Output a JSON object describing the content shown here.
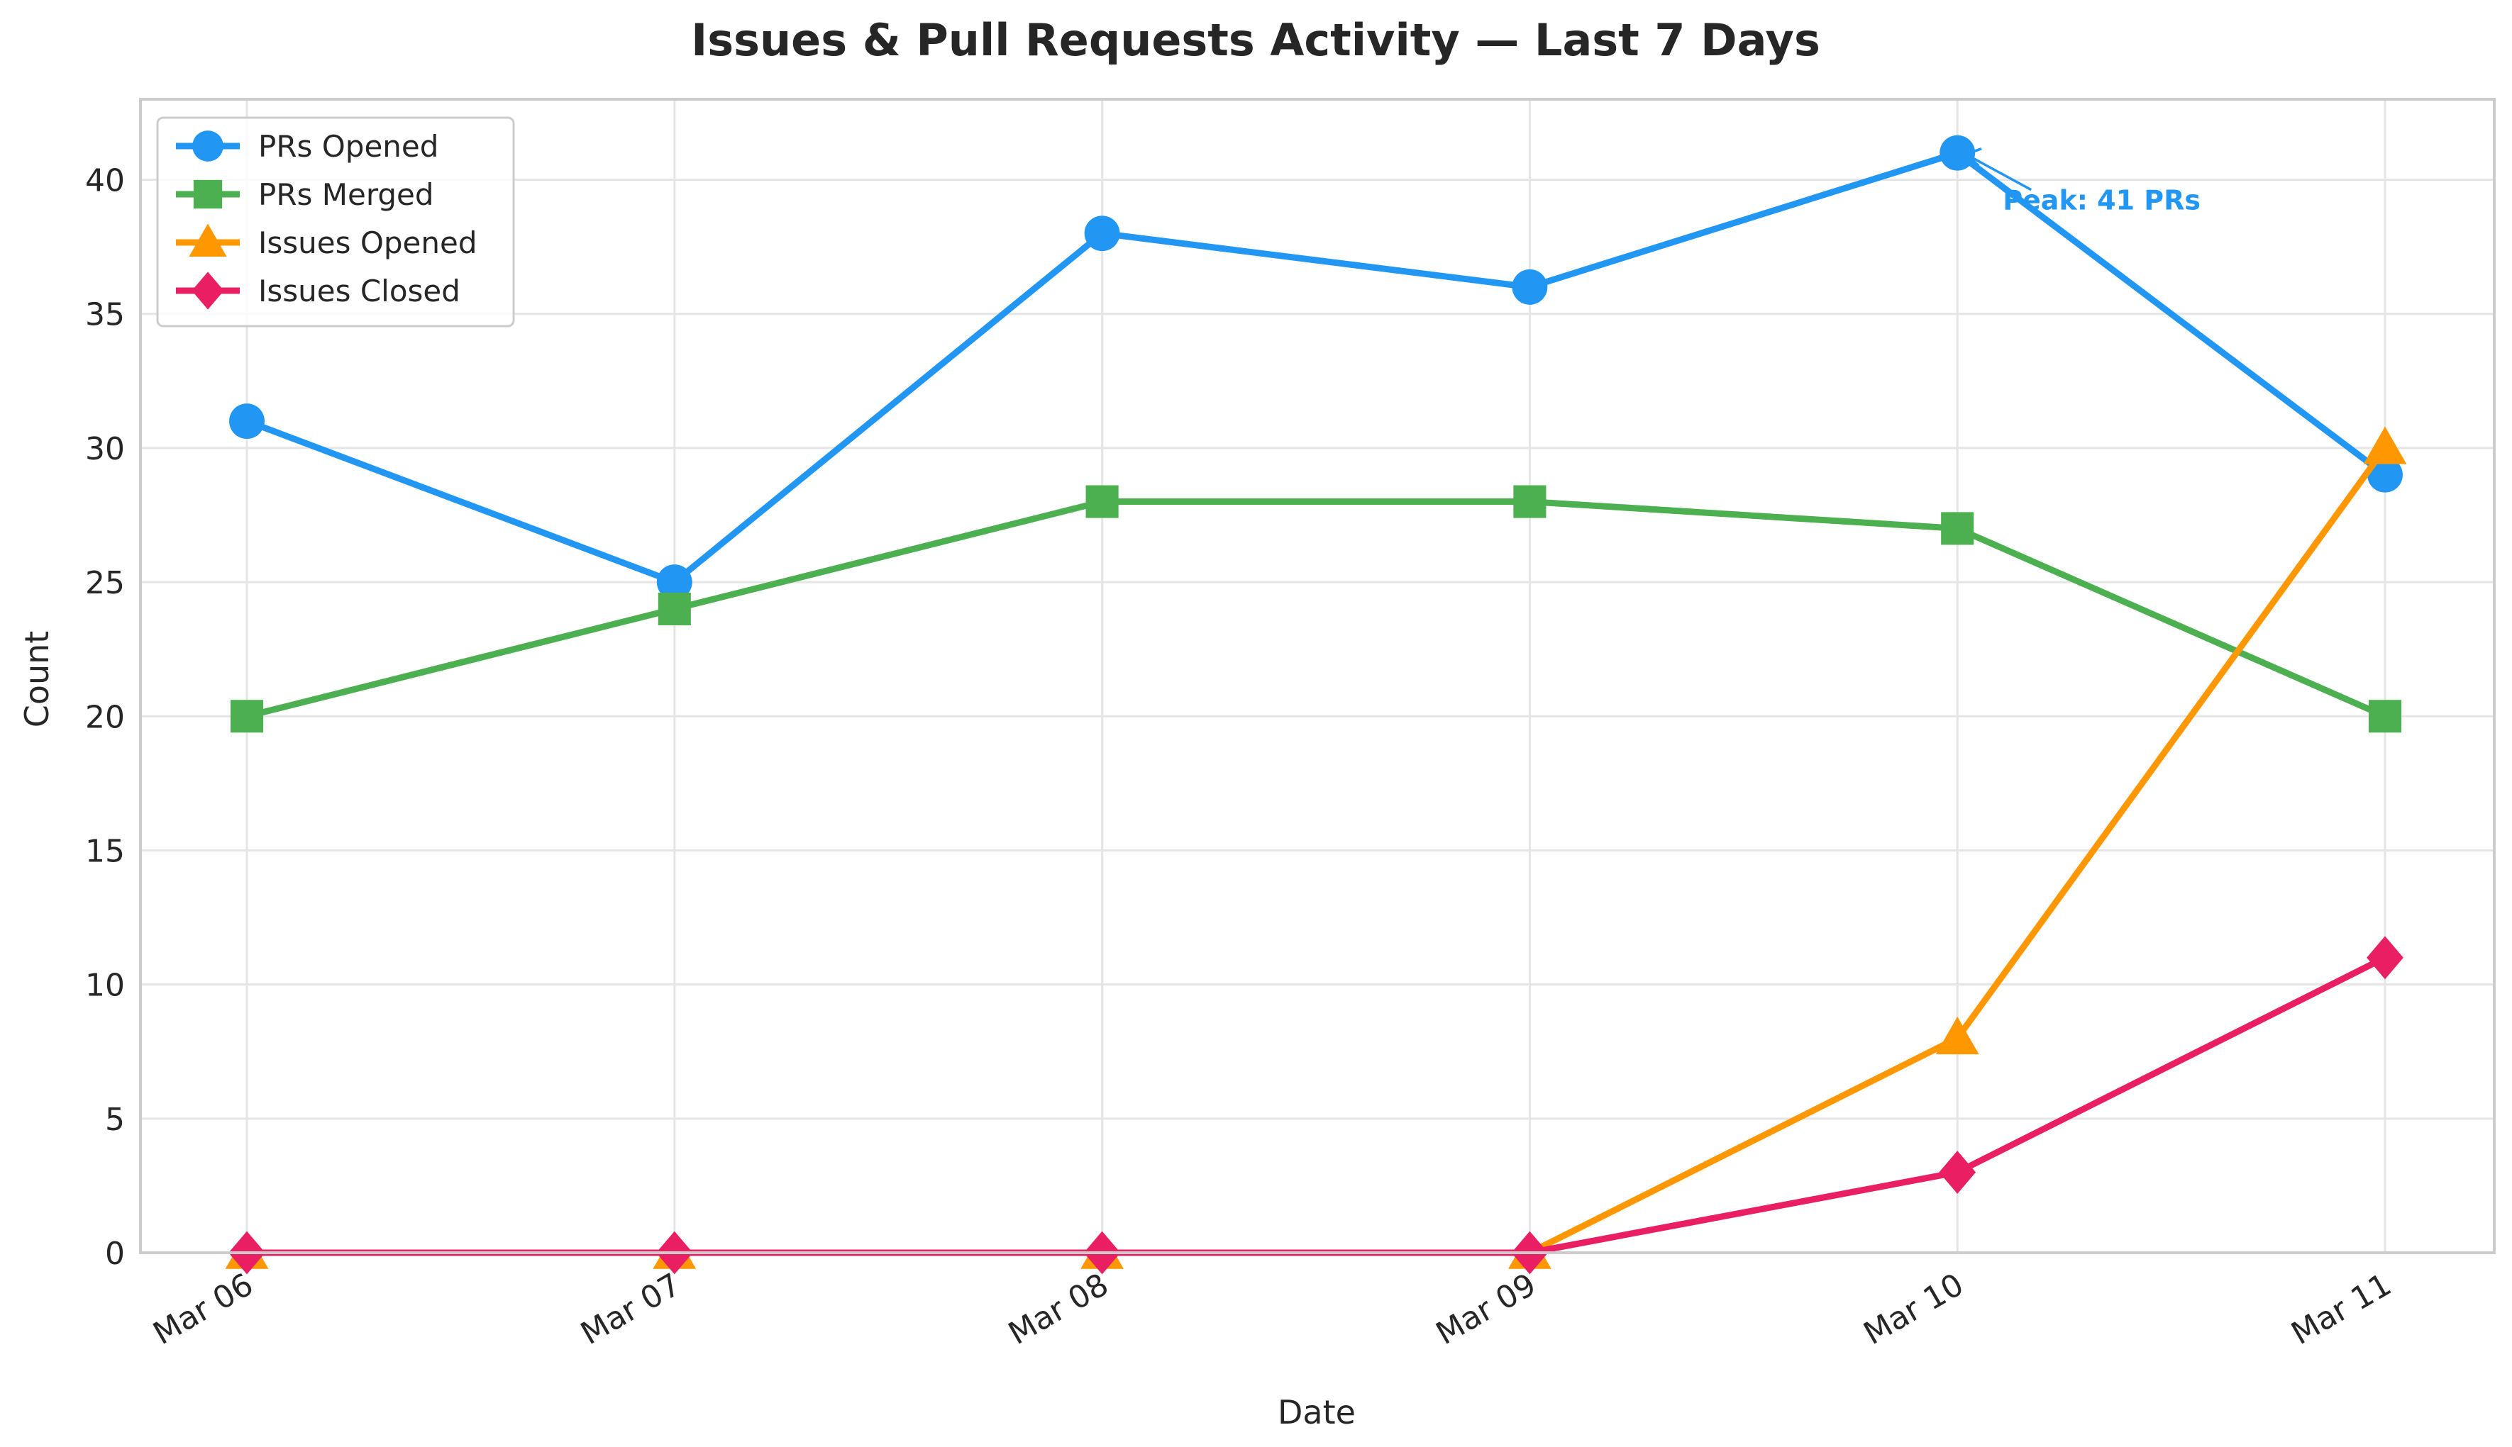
{
  "chart_data": {
    "type": "line",
    "title": "Issues & Pull Requests Activity — Last 7 Days",
    "xlabel": "Date",
    "ylabel": "Count",
    "categories": [
      "Mar 06",
      "Mar 07",
      "Mar 08",
      "Mar 09",
      "Mar 10",
      "Mar 11"
    ],
    "ylim": [
      0,
      43
    ],
    "yticks": [
      0,
      5,
      10,
      15,
      20,
      25,
      30,
      35,
      40
    ],
    "grid": true,
    "legend_position": "top-left",
    "series": [
      {
        "name": "PRs Opened",
        "values": [
          31,
          25,
          38,
          36,
          41,
          29
        ],
        "color": "#2196F3",
        "marker": "circle"
      },
      {
        "name": "PRs Merged",
        "values": [
          20,
          24,
          28,
          28,
          27,
          20
        ],
        "color": "#4CAF50",
        "marker": "square"
      },
      {
        "name": "Issues Opened",
        "values": [
          0,
          0,
          0,
          0,
          8,
          30
        ],
        "color": "#FF9800",
        "marker": "triangle"
      },
      {
        "name": "Issues Closed",
        "values": [
          0,
          0,
          0,
          0,
          3,
          11
        ],
        "color": "#E91E63",
        "marker": "diamond"
      }
    ],
    "annotations": [
      {
        "text": "Peak: 41 PRs",
        "x": "Mar 10",
        "y": 41,
        "color": "#2196F3"
      }
    ]
  }
}
